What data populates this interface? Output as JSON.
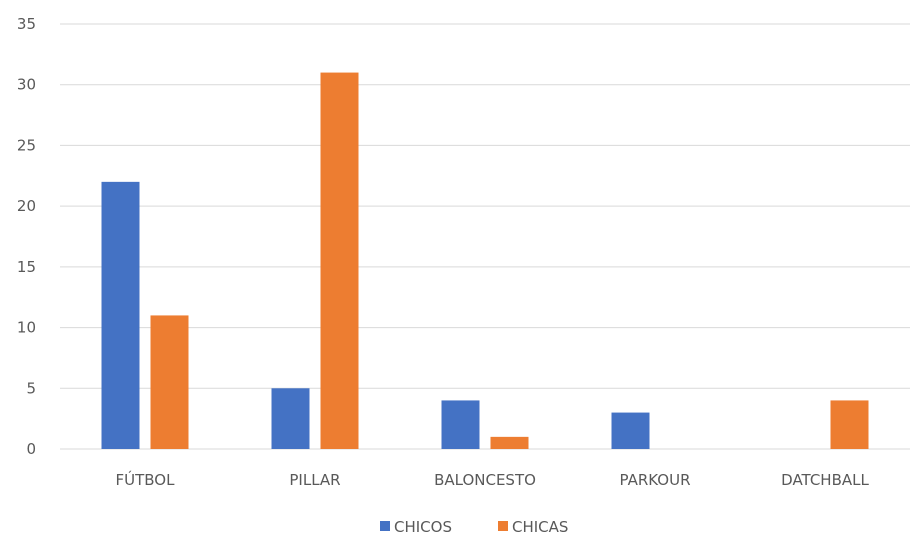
{
  "chart_data": {
    "type": "bar",
    "title": "",
    "xlabel": "",
    "ylabel": "",
    "categories": [
      "FÚTBOL",
      "PILLAR",
      "BALONCESTO",
      "PARKOUR",
      "DATCHBALL"
    ],
    "series": [
      {
        "name": "CHICOS",
        "color": "#4472C4",
        "values": [
          22,
          5,
          4,
          3,
          0
        ]
      },
      {
        "name": "CHICAS",
        "color": "#ED7D31",
        "values": [
          11,
          31,
          1,
          0,
          4
        ]
      }
    ],
    "ylim": [
      0,
      35
    ],
    "yticks": [
      0,
      5,
      10,
      15,
      20,
      25,
      30,
      35
    ],
    "grid": true,
    "gridColor": "#D9D9D9",
    "legend": "bottom"
  }
}
